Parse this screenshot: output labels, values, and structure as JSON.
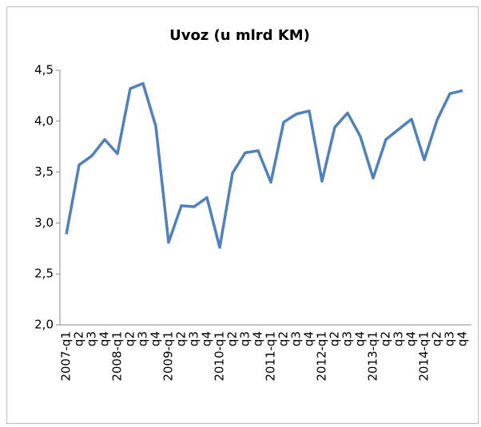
{
  "chart_data": {
    "type": "line",
    "title": "Uvoz (u mlrd KM)",
    "categories": [
      "2007-q1",
      "q2",
      "q3",
      "q4",
      "2008-q1",
      "q2",
      "q3",
      "q4",
      "2009-q1",
      "q2",
      "q3",
      "q4",
      "2010-q1",
      "q2",
      "q3",
      "q4",
      "2011-q1",
      "q2",
      "q3",
      "q4",
      "2012-q1",
      "q2",
      "q3",
      "q4",
      "2013-q1",
      "q2",
      "q3",
      "q4",
      "2014-q1",
      "q2",
      "q3",
      "q4"
    ],
    "values": [
      2.89,
      3.57,
      3.66,
      3.82,
      3.68,
      4.32,
      4.37,
      3.95,
      2.81,
      3.17,
      3.16,
      3.25,
      2.76,
      3.49,
      3.69,
      3.71,
      3.4,
      3.99,
      4.07,
      4.1,
      3.41,
      3.94,
      4.08,
      3.85,
      3.44,
      3.82,
      3.92,
      4.02,
      3.62,
      4.01,
      4.27,
      4.3
    ],
    "color": "#4f81bd",
    "ylim": [
      2.0,
      4.5
    ],
    "yticks": [
      {
        "value": 2.0,
        "label": "2,0"
      },
      {
        "value": 2.5,
        "label": "2,5"
      },
      {
        "value": 3.0,
        "label": "3,0"
      },
      {
        "value": 3.5,
        "label": "3,5"
      },
      {
        "value": 4.0,
        "label": "4,0"
      },
      {
        "value": 4.5,
        "label": "4,5"
      }
    ],
    "grid": false
  }
}
